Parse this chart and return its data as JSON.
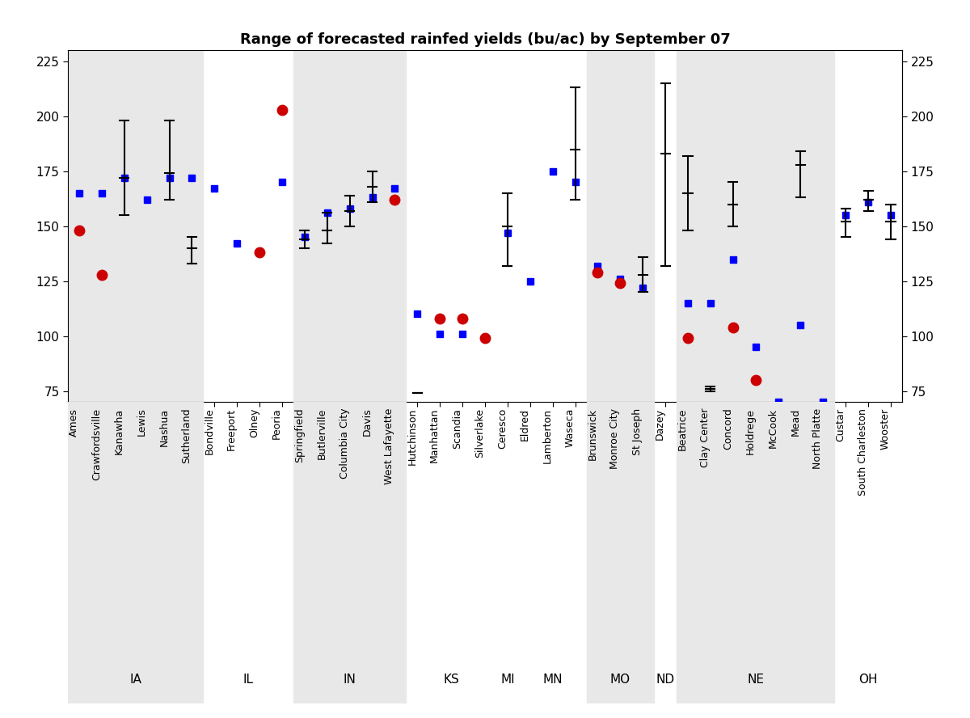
{
  "title": "Range of forecasted rainfed yields (bu/ac) by September 07",
  "ylim": [
    70,
    230
  ],
  "yticks": [
    75,
    100,
    125,
    150,
    175,
    200,
    225
  ],
  "stations": [
    "Ames",
    "Crawfordsville",
    "Kanawha",
    "Lewis",
    "Nashua",
    "Sutherland",
    "Bondville",
    "Freeport",
    "Olney",
    "Peoria",
    "Springfield",
    "Butlerville",
    "Columbia City",
    "Davis",
    "West Lafayette",
    "Hutchinson",
    "Manhattan",
    "Scandia",
    "Silverlake",
    "Ceresco",
    "Eldred",
    "Lamberton",
    "Waseca",
    "Brunswick",
    "Monroe City",
    "St Joseph",
    "Dazey",
    "Beatrice",
    "Clay Center",
    "Concord",
    "Holdrege",
    "McCook",
    "Mead",
    "North Platte",
    "Custar",
    "South Charleston",
    "Wooster"
  ],
  "state_info": [
    {
      "name": "IA",
      "indices": [
        0,
        1,
        2,
        3,
        4,
        5
      ],
      "shaded": true
    },
    {
      "name": "IL",
      "indices": [
        6,
        7,
        8,
        9
      ],
      "shaded": false
    },
    {
      "name": "IN",
      "indices": [
        10,
        11,
        12,
        13,
        14
      ],
      "shaded": true
    },
    {
      "name": "KS",
      "indices": [
        15,
        16,
        17,
        18
      ],
      "shaded": false
    },
    {
      "name": "MI",
      "indices": [
        19
      ],
      "shaded": false
    },
    {
      "name": "MN",
      "indices": [
        20,
        21,
        22
      ],
      "shaded": false
    },
    {
      "name": "MO",
      "indices": [
        23,
        24,
        25
      ],
      "shaded": true
    },
    {
      "name": "ND",
      "indices": [
        26
      ],
      "shaded": false
    },
    {
      "name": "NE",
      "indices": [
        27,
        28,
        29,
        30,
        31,
        32,
        33
      ],
      "shaded": true
    },
    {
      "name": "OH",
      "indices": [
        34,
        35,
        36
      ],
      "shaded": false
    }
  ],
  "blue_squares": [
    165,
    165,
    172,
    162,
    172,
    172,
    167,
    142,
    138,
    170,
    145,
    156,
    158,
    163,
    167,
    110,
    101,
    101,
    null,
    147,
    125,
    175,
    170,
    132,
    126,
    122,
    null,
    115,
    115,
    135,
    95,
    70,
    105,
    70,
    155,
    161,
    155
  ],
  "red_circles": [
    148,
    128,
    null,
    null,
    null,
    null,
    null,
    null,
    138,
    203,
    null,
    null,
    null,
    null,
    162,
    null,
    108,
    108,
    99,
    null,
    null,
    null,
    null,
    129,
    124,
    null,
    null,
    99,
    null,
    104,
    80,
    null,
    null,
    null,
    null,
    null,
    null
  ],
  "error_bar_center": [
    null,
    null,
    172,
    null,
    174,
    140,
    null,
    null,
    null,
    null,
    144,
    148,
    157,
    168,
    null,
    74,
    null,
    null,
    null,
    150,
    null,
    null,
    185,
    null,
    null,
    128,
    183,
    165,
    76,
    160,
    null,
    null,
    178,
    null,
    152,
    162,
    152
  ],
  "error_bar_low": [
    null,
    null,
    155,
    null,
    162,
    133,
    null,
    null,
    null,
    null,
    140,
    142,
    150,
    161,
    null,
    74,
    null,
    null,
    null,
    132,
    null,
    null,
    162,
    null,
    null,
    120,
    132,
    148,
    75,
    150,
    null,
    null,
    163,
    null,
    145,
    157,
    144
  ],
  "error_bar_high": [
    null,
    null,
    198,
    null,
    198,
    145,
    null,
    null,
    null,
    null,
    148,
    156,
    164,
    175,
    null,
    74,
    null,
    null,
    null,
    165,
    null,
    null,
    213,
    null,
    null,
    136,
    215,
    182,
    77,
    170,
    null,
    null,
    184,
    null,
    158,
    166,
    160
  ]
}
